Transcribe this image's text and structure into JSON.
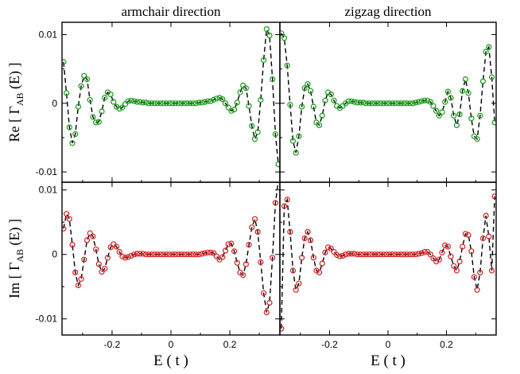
{
  "chart_data": [
    {
      "type": "line",
      "panel": "top-left",
      "title": "armchair direction",
      "ylabel": "Re [ Γ_AB (E) ]",
      "xlabel": "",
      "xlim": [
        -0.37,
        0.37
      ],
      "ylim": [
        -0.0115,
        0.0118
      ],
      "xticks": [
        -0.2,
        0,
        0.2
      ],
      "yticks": [
        -0.01,
        0,
        0.01
      ],
      "ytick_labels": [
        "-0.01",
        "0",
        "0.01"
      ],
      "marker_color": "#1a9a1a",
      "series": [
        {
          "style": "markers+dashed-line",
          "x": [
            -0.365,
            -0.355,
            -0.345,
            -0.335,
            -0.325,
            -0.315,
            -0.305,
            -0.295,
            -0.285,
            -0.275,
            -0.265,
            -0.255,
            -0.245,
            -0.235,
            -0.225,
            -0.215,
            -0.205,
            -0.195,
            -0.185,
            -0.175,
            -0.165,
            -0.155,
            -0.145,
            -0.135,
            -0.125,
            -0.115,
            -0.105,
            -0.095,
            -0.085,
            -0.075,
            -0.065,
            -0.055,
            -0.045,
            -0.035,
            -0.025,
            -0.015,
            -0.005,
            0.005,
            0.015,
            0.025,
            0.035,
            0.045,
            0.055,
            0.065,
            0.075,
            0.085,
            0.095,
            0.105,
            0.115,
            0.125,
            0.135,
            0.145,
            0.155,
            0.165,
            0.175,
            0.185,
            0.195,
            0.205,
            0.215,
            0.225,
            0.235,
            0.245,
            0.255,
            0.265,
            0.275,
            0.285,
            0.295,
            0.305,
            0.315,
            0.325,
            0.335,
            0.345,
            0.355,
            0.365
          ],
          "y": [
            0.006,
            0.0015,
            -0.0035,
            -0.0058,
            -0.0045,
            -0.0005,
            0.0025,
            0.004,
            0.0035,
            0.0005,
            -0.002,
            -0.0028,
            -0.0027,
            -0.0012,
            0.0008,
            0.0016,
            0.0013,
            0.0002,
            -0.0005,
            -0.0008,
            -0.0006,
            -0.0001,
            0.0003,
            0.0004,
            0.0003,
            0.0002,
            0.0002,
            0.0001,
            0.0001,
            0.0,
            0.0,
            0.0,
            0.0,
            0.0,
            0.0,
            0.0,
            0.0,
            0.0,
            0.0,
            0.0,
            0.0,
            0.0,
            0.0,
            0.0,
            0.0,
            0.0,
            0.0001,
            0.0001,
            0.0002,
            0.0003,
            0.0003,
            0.0005,
            0.0007,
            0.0008,
            0.0006,
            0.0,
            -0.0006,
            -0.0011,
            -0.0009,
            0.0001,
            0.0016,
            0.0026,
            0.0022,
            -0.0004,
            -0.0033,
            -0.0052,
            -0.0042,
            0.0005,
            0.0063,
            0.0108,
            0.0099,
            0.0035,
            -0.0045,
            -0.0089
          ]
        }
      ]
    },
    {
      "type": "line",
      "panel": "top-right",
      "title": "zigzag direction",
      "xlim": [
        -0.37,
        0.37
      ],
      "ylim": [
        -0.0115,
        0.0118
      ],
      "xticks": [
        -0.2,
        0,
        0.2
      ],
      "yticks": [
        -0.01,
        0,
        0.01
      ],
      "marker_color": "#1a9a1a",
      "series": [
        {
          "style": "markers+dashed-line",
          "x": [
            -0.365,
            -0.355,
            -0.345,
            -0.335,
            -0.325,
            -0.315,
            -0.305,
            -0.295,
            -0.285,
            -0.275,
            -0.265,
            -0.255,
            -0.245,
            -0.235,
            -0.225,
            -0.215,
            -0.205,
            -0.195,
            -0.185,
            -0.175,
            -0.165,
            -0.155,
            -0.145,
            -0.135,
            -0.125,
            -0.115,
            -0.105,
            -0.095,
            -0.085,
            -0.075,
            -0.065,
            -0.055,
            -0.045,
            -0.035,
            -0.025,
            -0.015,
            -0.005,
            0.005,
            0.015,
            0.025,
            0.035,
            0.045,
            0.055,
            0.065,
            0.075,
            0.085,
            0.095,
            0.105,
            0.115,
            0.125,
            0.135,
            0.145,
            0.155,
            0.165,
            0.175,
            0.185,
            0.195,
            0.205,
            0.215,
            0.225,
            0.235,
            0.245,
            0.255,
            0.265,
            0.275,
            0.285,
            0.295,
            0.305,
            0.315,
            0.325,
            0.335,
            0.345,
            0.355,
            0.365
          ],
          "y": [
            0.0102,
            0.0095,
            0.0055,
            -0.0002,
            -0.0055,
            -0.0072,
            -0.0048,
            -0.0005,
            0.0022,
            0.0028,
            0.0018,
            -0.0005,
            -0.0028,
            -0.0032,
            -0.0018,
            0.0004,
            0.0016,
            0.0013,
            0.0004,
            -0.0004,
            -0.0007,
            -0.0004,
            0.0,
            0.0003,
            0.0003,
            0.0002,
            0.0001,
            0.0001,
            0.0001,
            0.0,
            0.0,
            0.0,
            0.0,
            0.0,
            0.0,
            0.0,
            0.0,
            0.0,
            0.0,
            0.0,
            0.0,
            0.0,
            0.0,
            0.0,
            0.0,
            0.0,
            0.0001,
            0.0002,
            0.0003,
            0.0004,
            0.0004,
            0.0002,
            -0.0004,
            -0.0011,
            -0.0018,
            -0.0013,
            0.0002,
            0.0017,
            0.0008,
            -0.0018,
            -0.0032,
            -0.0016,
            0.0018,
            0.0035,
            0.0015,
            -0.0022,
            -0.0048,
            -0.0052,
            -0.0018,
            0.0032,
            0.0075,
            0.0082,
            0.0038,
            -0.0028
          ]
        }
      ]
    },
    {
      "type": "line",
      "panel": "bottom-left",
      "title": "",
      "ylabel": "Im [ Γ_AB (E) ]",
      "xlabel": "E ( t )",
      "xlim": [
        -0.37,
        0.37
      ],
      "ylim": [
        -0.0125,
        0.0112
      ],
      "xticks": [
        -0.2,
        0,
        0.2
      ],
      "xtick_labels": [
        "-0.2",
        "0",
        "0.2"
      ],
      "yticks": [
        -0.01,
        0,
        0.01
      ],
      "ytick_labels": [
        "-0.01",
        "0",
        "0.01"
      ],
      "marker_color": "#d42020",
      "series": [
        {
          "style": "markers+dashed-line",
          "x": [
            -0.365,
            -0.355,
            -0.345,
            -0.335,
            -0.325,
            -0.315,
            -0.305,
            -0.295,
            -0.285,
            -0.275,
            -0.265,
            -0.255,
            -0.245,
            -0.235,
            -0.225,
            -0.215,
            -0.205,
            -0.195,
            -0.185,
            -0.175,
            -0.165,
            -0.155,
            -0.145,
            -0.135,
            -0.125,
            -0.115,
            -0.105,
            -0.095,
            -0.085,
            -0.075,
            -0.065,
            -0.055,
            -0.045,
            -0.035,
            -0.025,
            -0.015,
            -0.005,
            0.005,
            0.015,
            0.025,
            0.035,
            0.045,
            0.055,
            0.065,
            0.075,
            0.085,
            0.095,
            0.105,
            0.115,
            0.125,
            0.135,
            0.145,
            0.155,
            0.165,
            0.175,
            0.185,
            0.195,
            0.205,
            0.215,
            0.225,
            0.235,
            0.245,
            0.255,
            0.265,
            0.275,
            0.285,
            0.295,
            0.305,
            0.315,
            0.325,
            0.335,
            0.345,
            0.355,
            0.365
          ],
          "y": [
            0.004,
            0.0063,
            0.0055,
            0.0015,
            -0.0028,
            -0.0048,
            -0.0038,
            -0.0008,
            0.0022,
            0.0033,
            0.0028,
            0.0008,
            -0.0015,
            -0.0027,
            -0.0022,
            -0.0005,
            0.0011,
            0.0016,
            0.0012,
            0.0004,
            -0.0003,
            -0.0005,
            -0.0004,
            -0.0002,
            0.0,
            0.0001,
            0.0001,
            0.0001,
            0.0,
            0.0,
            0.0,
            0.0,
            0.0,
            0.0,
            0.0,
            0.0,
            0.0,
            0.0,
            0.0,
            0.0,
            0.0,
            0.0,
            0.0,
            0.0,
            0.0,
            0.0,
            0.0,
            0.0001,
            0.0002,
            0.0003,
            0.0003,
            0.0002,
            -0.0003,
            -0.0008,
            -0.0004,
            0.0006,
            0.0016,
            0.0017,
            0.0005,
            -0.0013,
            -0.0028,
            -0.0032,
            -0.0015,
            0.0015,
            0.0042,
            0.0055,
            0.0035,
            -0.0012,
            -0.006,
            -0.009,
            -0.0075,
            -0.0005,
            0.008,
            0.0115
          ]
        }
      ]
    },
    {
      "type": "line",
      "panel": "bottom-right",
      "title": "",
      "xlabel": "E ( t )",
      "xlim": [
        -0.37,
        0.37
      ],
      "ylim": [
        -0.0125,
        0.0112
      ],
      "xticks": [
        -0.2,
        0,
        0.2
      ],
      "xtick_labels": [
        "-0.2",
        "0",
        "0.2"
      ],
      "yticks": [
        -0.01,
        0,
        0.01
      ],
      "marker_color": "#d42020",
      "series": [
        {
          "style": "markers+dashed-line",
          "x": [
            -0.365,
            -0.355,
            -0.345,
            -0.335,
            -0.325,
            -0.315,
            -0.305,
            -0.295,
            -0.285,
            -0.275,
            -0.265,
            -0.255,
            -0.245,
            -0.235,
            -0.225,
            -0.215,
            -0.205,
            -0.195,
            -0.185,
            -0.175,
            -0.165,
            -0.155,
            -0.145,
            -0.135,
            -0.125,
            -0.115,
            -0.105,
            -0.095,
            -0.085,
            -0.075,
            -0.065,
            -0.055,
            -0.045,
            -0.035,
            -0.025,
            -0.015,
            -0.005,
            0.005,
            0.015,
            0.025,
            0.035,
            0.045,
            0.055,
            0.065,
            0.075,
            0.085,
            0.095,
            0.105,
            0.115,
            0.125,
            0.135,
            0.145,
            0.155,
            0.165,
            0.175,
            0.185,
            0.195,
            0.205,
            0.215,
            0.225,
            0.235,
            0.245,
            0.255,
            0.265,
            0.275,
            0.285,
            0.295,
            0.305,
            0.315,
            0.325,
            0.335,
            0.345,
            0.355,
            0.365
          ],
          "y": [
            -0.0115,
            0.0075,
            0.0085,
            0.0035,
            -0.0025,
            -0.0055,
            -0.0045,
            -0.0005,
            0.0025,
            0.0035,
            0.0022,
            -0.0005,
            -0.0025,
            -0.0028,
            -0.0014,
            0.0003,
            0.0011,
            0.0009,
            0.0004,
            -0.0001,
            -0.0003,
            -0.0002,
            0.0,
            0.0001,
            0.0001,
            0.0001,
            0.0,
            0.0,
            0.0,
            0.0,
            0.0,
            0.0,
            0.0,
            0.0,
            0.0,
            0.0,
            0.0,
            0.0,
            0.0,
            0.0,
            0.0,
            0.0,
            0.0,
            0.0,
            0.0,
            0.0,
            0.0,
            0.0001,
            0.0002,
            0.0004,
            0.0004,
            0.0,
            -0.0006,
            -0.0011,
            -0.0008,
            0.0003,
            0.0014,
            0.0012,
            -0.0003,
            -0.0018,
            -0.0025,
            -0.0011,
            0.0012,
            0.0032,
            0.003,
            0.0005,
            -0.0035,
            -0.0055,
            -0.0028,
            0.0025,
            0.006,
            0.0028,
            -0.0025,
            0.009
          ]
        }
      ]
    }
  ]
}
